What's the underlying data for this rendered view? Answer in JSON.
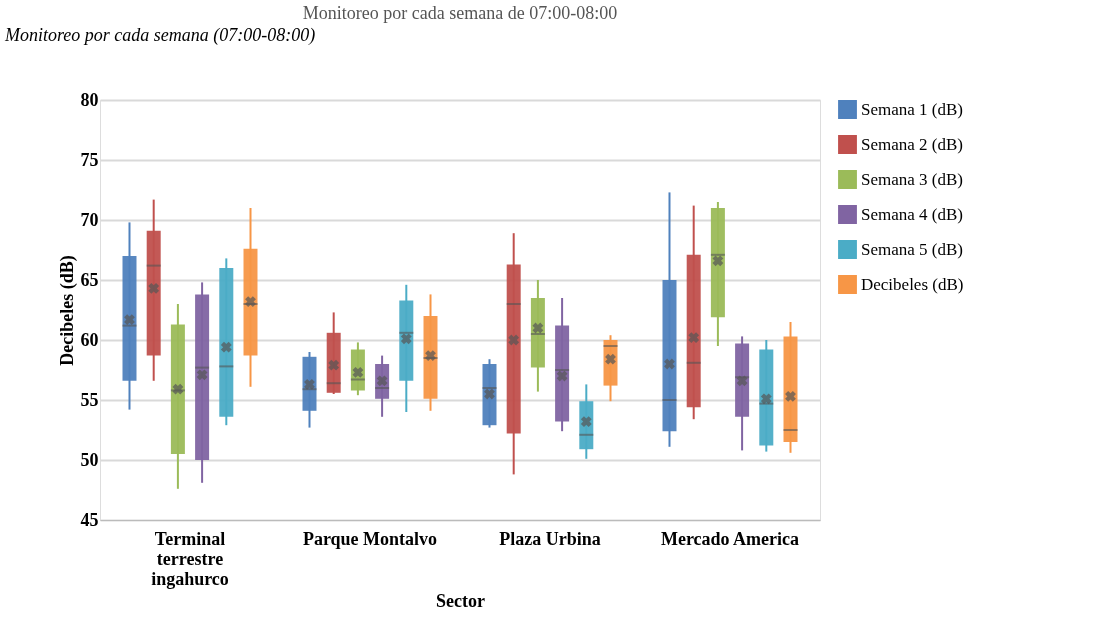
{
  "chart_data": {
    "type": "box",
    "title": "Monitoreo por cada semana de 07:00-08:00",
    "xlabel": "Sector",
    "ylabel": "Decibeles (dB)",
    "annotations": [
      "Monitoreo por cada semana (07:00-08:00)"
    ],
    "categories": [
      "Terminal terrestre ingahurco",
      "Parque Montalvo",
      "Plaza Urbina",
      "Mercado America"
    ],
    "ylim": [
      45,
      80
    ],
    "yticks": [
      45,
      50,
      55,
      60,
      65,
      70,
      75,
      80
    ],
    "grid": "y",
    "legend": "right",
    "series": [
      {
        "name": "Semana 1 (dB)",
        "color": "#4f81bd",
        "boxes": [
          {
            "low": 54.2,
            "q1": 56.6,
            "median": 61.2,
            "q3": 67.0,
            "high": 69.8,
            "mean": 61.7
          },
          {
            "low": 52.7,
            "q1": 54.1,
            "median": 55.9,
            "q3": 58.6,
            "high": 59.0,
            "mean": 56.3
          },
          {
            "low": 52.7,
            "q1": 52.9,
            "median": 56.0,
            "q3": 58.0,
            "high": 58.4,
            "mean": 55.5
          },
          {
            "low": 51.1,
            "q1": 52.4,
            "median": 55.0,
            "q3": 65.0,
            "high": 72.3,
            "mean": 58.0
          }
        ]
      },
      {
        "name": "Semana 2 (dB)",
        "color": "#c0504d",
        "boxes": [
          {
            "low": 56.6,
            "q1": 58.7,
            "median": 66.2,
            "q3": 69.1,
            "high": 71.7,
            "mean": 64.3
          },
          {
            "low": 55.5,
            "q1": 55.6,
            "median": 56.4,
            "q3": 60.6,
            "high": 62.3,
            "mean": 57.9
          },
          {
            "low": 48.8,
            "q1": 52.2,
            "median": 63.0,
            "q3": 66.3,
            "high": 68.9,
            "mean": 60.0
          },
          {
            "low": 53.4,
            "q1": 54.4,
            "median": 58.1,
            "q3": 67.1,
            "high": 71.2,
            "mean": 60.2
          }
        ]
      },
      {
        "name": "Semana 3  (dB)",
        "color": "#9bbb59",
        "boxes": [
          {
            "low": 47.6,
            "q1": 50.5,
            "median": 55.8,
            "q3": 61.3,
            "high": 63.0,
            "mean": 55.9
          },
          {
            "low": 55.4,
            "q1": 55.8,
            "median": 56.7,
            "q3": 59.2,
            "high": 59.8,
            "mean": 57.3
          },
          {
            "low": 55.7,
            "q1": 57.7,
            "median": 60.5,
            "q3": 63.5,
            "high": 65.0,
            "mean": 61.0
          },
          {
            "low": 59.5,
            "q1": 61.9,
            "median": 67.1,
            "q3": 71.0,
            "high": 71.5,
            "mean": 66.6
          }
        ]
      },
      {
        "name": "Semana 4  (dB)",
        "color": "#8064a2",
        "boxes": [
          {
            "low": 48.1,
            "q1": 50.0,
            "median": 57.7,
            "q3": 63.8,
            "high": 64.8,
            "mean": 57.1
          },
          {
            "low": 53.6,
            "q1": 55.1,
            "median": 56.0,
            "q3": 58.0,
            "high": 58.7,
            "mean": 56.6
          },
          {
            "low": 52.4,
            "q1": 53.2,
            "median": 57.5,
            "q3": 61.2,
            "high": 63.5,
            "mean": 57.0
          },
          {
            "low": 50.8,
            "q1": 53.6,
            "median": 56.9,
            "q3": 59.7,
            "high": 60.3,
            "mean": 56.6
          }
        ]
      },
      {
        "name": "Semana 5  (dB)",
        "color": "#4bacc6",
        "boxes": [
          {
            "low": 52.9,
            "q1": 53.6,
            "median": 57.8,
            "q3": 66.0,
            "high": 66.8,
            "mean": 59.4
          },
          {
            "low": 54.0,
            "q1": 56.6,
            "median": 60.6,
            "q3": 63.3,
            "high": 64.6,
            "mean": 60.1
          },
          {
            "low": 50.1,
            "q1": 50.9,
            "median": 52.1,
            "q3": 54.9,
            "high": 56.3,
            "mean": 53.2
          },
          {
            "low": 50.7,
            "q1": 51.2,
            "median": 54.7,
            "q3": 59.2,
            "high": 60.0,
            "mean": 55.1
          }
        ]
      },
      {
        "name": "Decibeles (dB)",
        "color": "#f79646",
        "boxes": [
          {
            "low": 56.1,
            "q1": 58.7,
            "median": 63.0,
            "q3": 67.6,
            "high": 71.0,
            "mean": 63.2
          },
          {
            "low": 54.1,
            "q1": 55.1,
            "median": 58.5,
            "q3": 62.0,
            "high": 63.8,
            "mean": 58.7
          },
          {
            "low": 54.9,
            "q1": 56.2,
            "median": 59.5,
            "q3": 60.0,
            "high": 60.4,
            "mean": 58.4
          },
          {
            "low": 50.6,
            "q1": 51.5,
            "median": 52.5,
            "q3": 60.3,
            "high": 61.5,
            "mean": 55.3
          }
        ]
      }
    ]
  }
}
